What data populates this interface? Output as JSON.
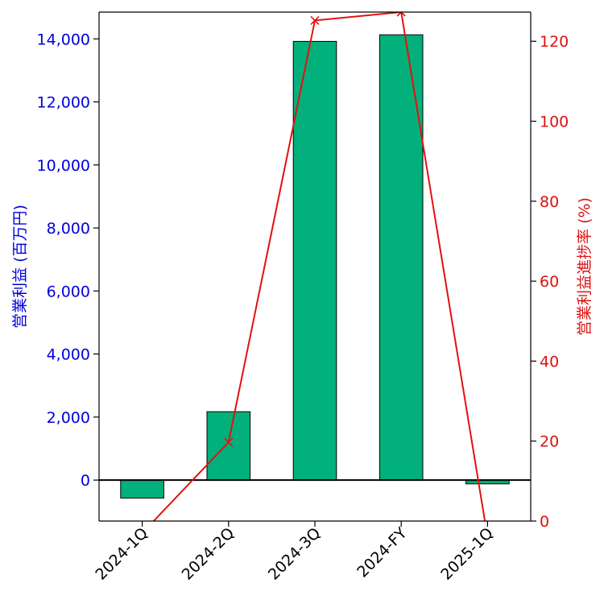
{
  "chart_data": {
    "type": "bar+line",
    "categories": [
      "2024-1Q",
      "2024-2Q",
      "2024-3Q",
      "2024-FY",
      "2025-1Q"
    ],
    "bar_series": {
      "name": "営業利益",
      "values": [
        -570,
        2170,
        13920,
        14130,
        -120
      ],
      "color": "#02b07c",
      "axis": "left"
    },
    "line_series": {
      "name": "営業利益進捗率",
      "values": [
        -3,
        19.7,
        125.2,
        127.3,
        -4
      ],
      "color": "#e3110e",
      "marker": "x",
      "axis": "right"
    },
    "ylabel_left": "営業利益 (百万円)",
    "ylabel_right": "営業利益進捗率 (%)",
    "ylim_left": [
      -1300,
      14850
    ],
    "ylim_right": [
      0,
      127.3
    ],
    "yticks_left": [
      0,
      2000,
      4000,
      6000,
      8000,
      10000,
      12000,
      14000
    ],
    "yticks_left_labels": [
      "0",
      "2,000",
      "4,000",
      "6,000",
      "8,000",
      "10,000",
      "12,000",
      "14,000"
    ],
    "yticks_right": [
      0,
      20,
      40,
      60,
      80,
      100,
      120
    ],
    "yticks_right_labels": [
      "0",
      "20",
      "40",
      "60",
      "80",
      "100",
      "120"
    ],
    "left_axis_color": "#0000dd",
    "right_axis_color": "#dd1111",
    "zero_line": true,
    "grid": false,
    "legend": "none",
    "title": ""
  }
}
